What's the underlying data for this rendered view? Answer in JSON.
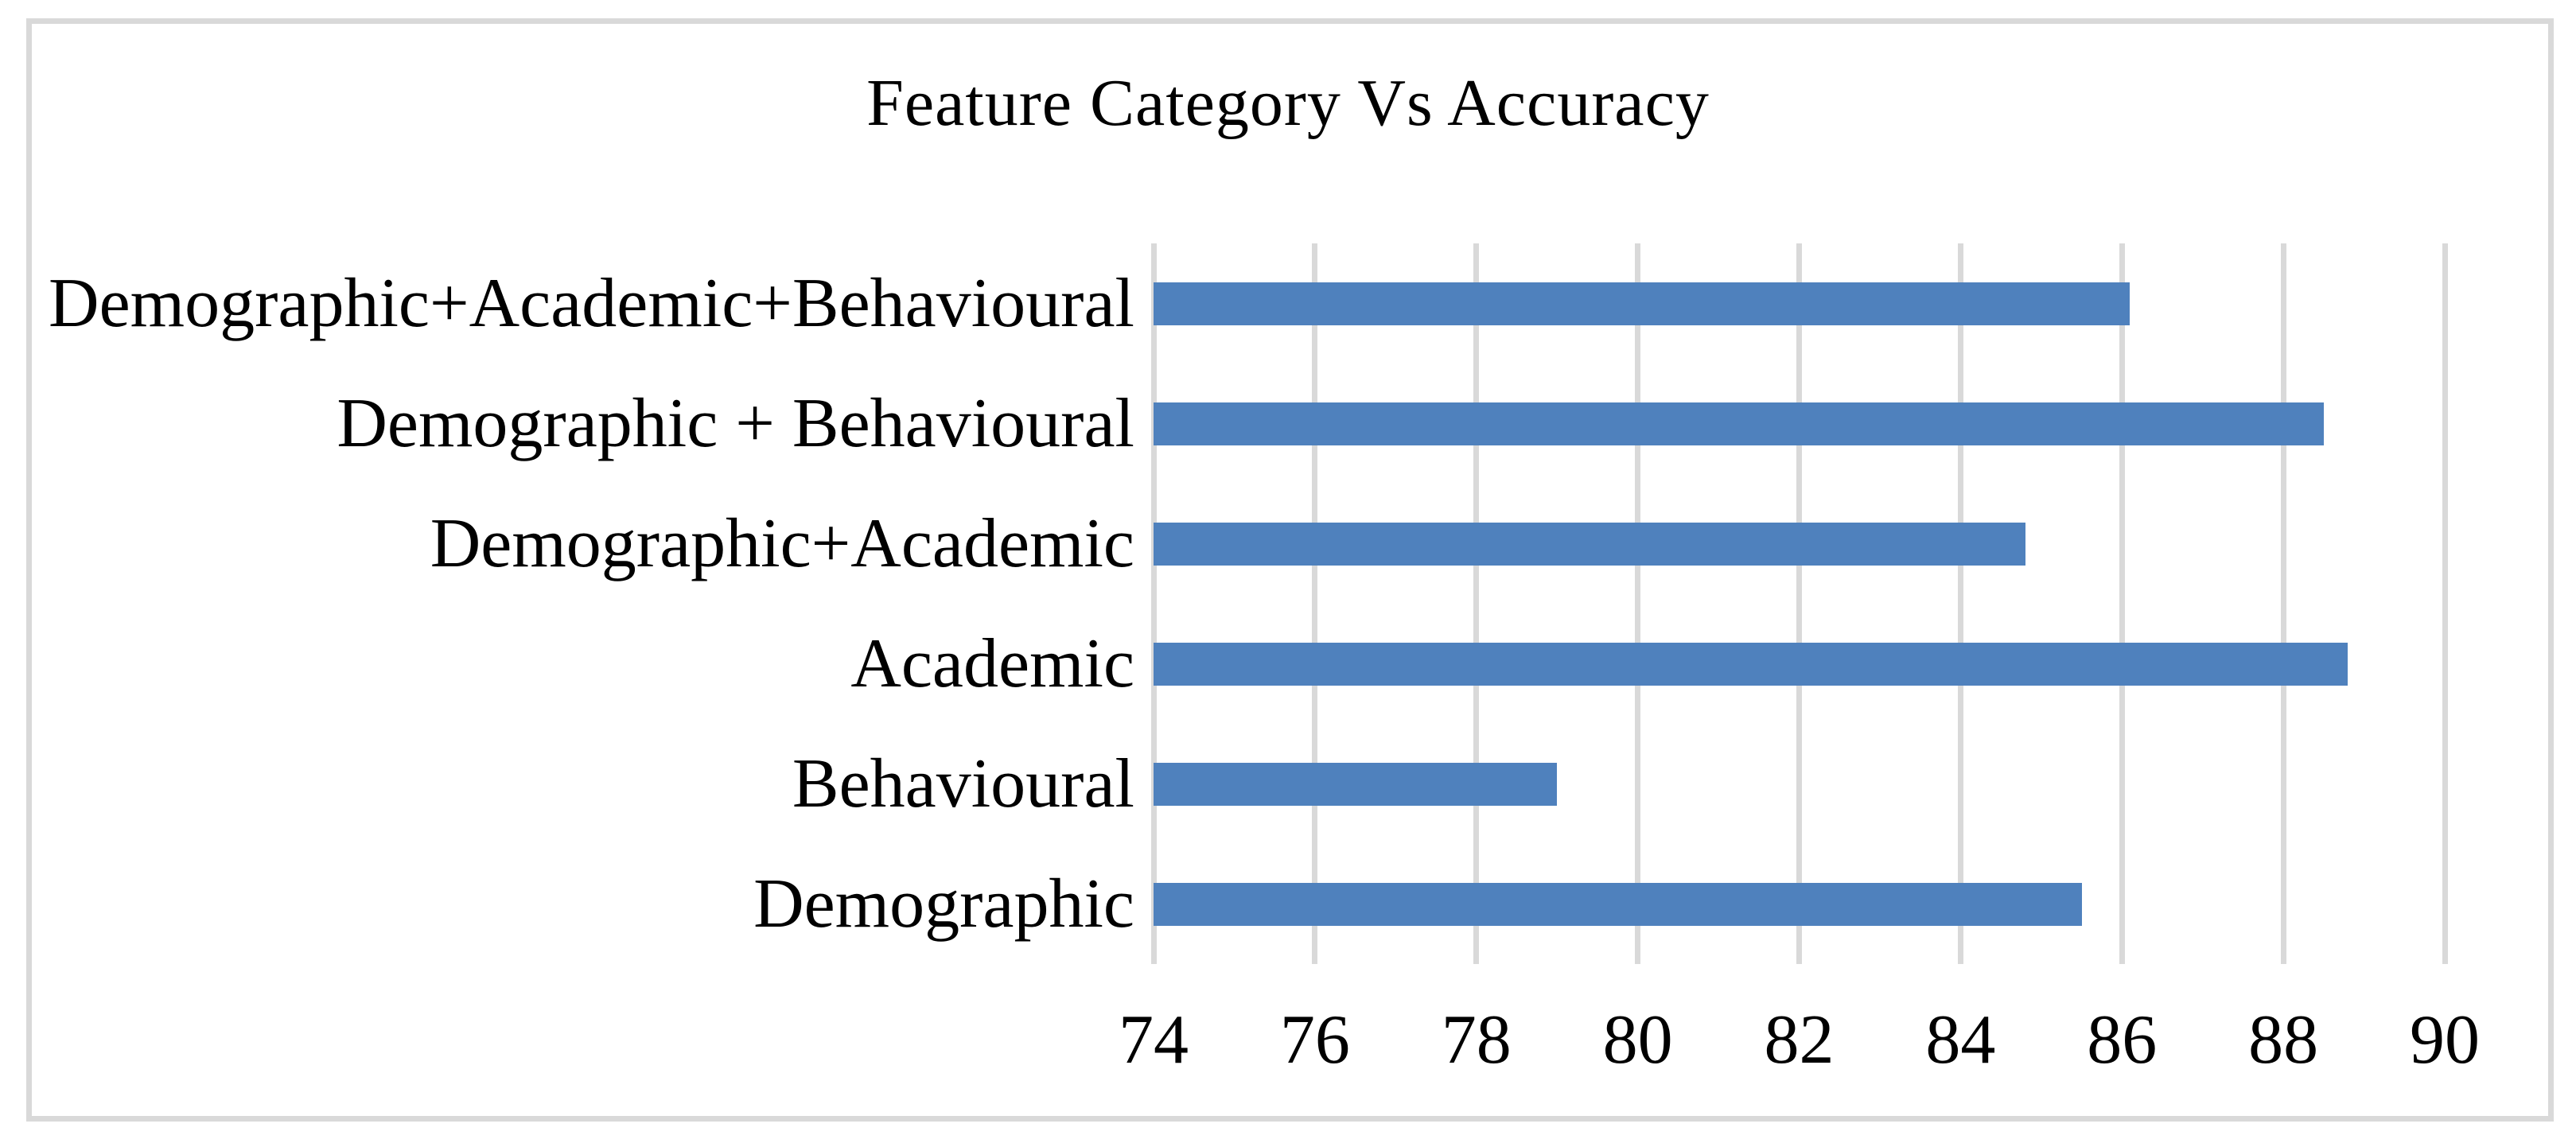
{
  "chart_data": {
    "type": "bar",
    "orientation": "horizontal",
    "title": "Feature Category Vs Accuracy",
    "categories": [
      "Demographic+Academic+Behavioural",
      "Demographic + Behavioural",
      "Demographic+Academic",
      "Academic",
      "Behavioural",
      "Demographic"
    ],
    "values": [
      86.1,
      88.5,
      84.8,
      88.8,
      79.0,
      85.5
    ],
    "xlabel": "",
    "ylabel": "",
    "xlim": [
      74,
      90
    ],
    "xticks": [
      "74",
      "76",
      "78",
      "80",
      "82",
      "84",
      "86",
      "88",
      "90"
    ],
    "grid": true,
    "legend": false,
    "colors": {
      "bar": "#4F81BD",
      "gridline": "#D9D9D9",
      "border": "#D9D9D9",
      "text": "#000000",
      "background": "#FFFFFF"
    }
  }
}
